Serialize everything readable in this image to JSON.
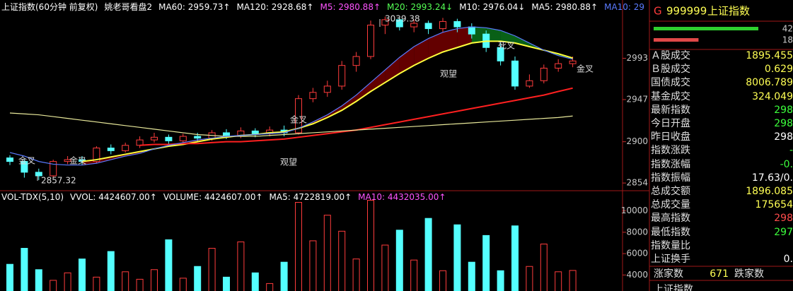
{
  "chart_data": [
    {
      "type": "candlestick",
      "title": "上证指数(60分钟 前复权)",
      "indicators": [
        {
          "text": "姚老哥看盘2",
          "color": "#ffffff"
        },
        {
          "text": "MA60: 2959.73↑",
          "color": "#ffffff"
        },
        {
          "text": "MA120: 2928.68↑",
          "color": "#ffffff"
        },
        {
          "text": "M5: 2980.88↑",
          "color": "#ff54ff"
        },
        {
          "text": "M20: 2993.24↓",
          "color": "#54ff54"
        },
        {
          "text": "M10: 2976.04↓",
          "color": "#ffffff"
        },
        {
          "text": "MA5: 2980.88↑",
          "color": "#ffffff"
        },
        {
          "text": "MA10: 29",
          "color": "#5a7bff"
        }
      ],
      "open": [
        2882,
        2878,
        2866,
        2862,
        2878,
        2880,
        2878,
        2893,
        2890,
        2896,
        2902,
        2905,
        2901,
        2906,
        2904,
        2910,
        2907,
        2912,
        2909,
        2913,
        2910,
        2948,
        2955,
        2962,
        2985,
        2995,
        3030,
        3036,
        3028,
        3032,
        3026,
        3034,
        3028,
        3020,
        3005,
        2990,
        2962,
        2968,
        2982,
        2987
      ],
      "high": [
        2885,
        2880,
        2870,
        2880,
        2884,
        2884,
        2895,
        2897,
        2899,
        2906,
        2910,
        2908,
        2909,
        2910,
        2913,
        2914,
        2916,
        2915,
        2917,
        2918,
        2952,
        2960,
        2968,
        2990,
        3000,
        3035,
        3039.38,
        3038,
        3036,
        3035,
        3038,
        3037,
        3032,
        3024,
        3010,
        2995,
        2975,
        2986,
        2992,
        2995
      ],
      "low": [
        2874,
        2860,
        2857.32,
        2860,
        2875,
        2874,
        2876,
        2886,
        2888,
        2893,
        2899,
        2897,
        2898,
        2900,
        2901,
        2903,
        2904,
        2905,
        2906,
        2906,
        2908,
        2944,
        2950,
        2958,
        2978,
        2992,
        3020,
        3024,
        3022,
        3020,
        3022,
        3022,
        3015,
        3000,
        2985,
        2958,
        2960,
        2965,
        2978,
        2983
      ],
      "close": [
        2878,
        2866,
        2862,
        2878,
        2880,
        2878,
        2893,
        2890,
        2896,
        2902,
        2905,
        2901,
        2906,
        2904,
        2910,
        2907,
        2912,
        2909,
        2913,
        2910,
        2948,
        2955,
        2962,
        2985,
        2995,
        3030,
        3036,
        3028,
        3032,
        3026,
        3034,
        3028,
        3020,
        3005,
        2990,
        2962,
        2968,
        2982,
        2987,
        2990
      ],
      "up_color": "#ff3c3c",
      "down_color": "#54ffff",
      "series": [
        {
          "color": "#ffff3c",
          "values": [
            null,
            null,
            null,
            null,
            null,
            2878,
            2880,
            2883,
            2886,
            2889,
            2892,
            2895,
            2897,
            2900,
            2903,
            2905,
            2907,
            2908,
            2910,
            2911,
            2915,
            2920,
            2927,
            2935,
            2945,
            2956,
            2966,
            2976,
            2985,
            2993,
            3000,
            3005,
            3010,
            3012,
            3012,
            3010,
            3006,
            3002,
            2998,
            2993.24
          ]
        },
        {
          "color": "#ff2020",
          "values": [
            null,
            null,
            null,
            null,
            null,
            null,
            null,
            null,
            null,
            2896,
            2897,
            2897,
            2898,
            2898,
            2899,
            2900,
            2900,
            2901,
            2902,
            2903,
            2905,
            2907,
            2909,
            2911,
            2913,
            2916,
            2919,
            2922,
            2925,
            2928,
            2931,
            2934,
            2937,
            2940,
            2943,
            2946,
            2949,
            2952,
            2956,
            2959.73
          ]
        },
        {
          "color": "#e8e89a",
          "values": [
            2932,
            2931,
            2930,
            2928,
            2926,
            2924,
            2922,
            2920,
            2918,
            2916,
            2914,
            2912,
            2910,
            2908,
            2907,
            2906,
            2906,
            2906,
            2907,
            2908,
            2909,
            2910,
            2911,
            2912,
            2913,
            2914,
            2915,
            2916,
            2917,
            2918,
            2919,
            2920,
            2921,
            2922,
            2923,
            2924,
            2925,
            2926,
            2927,
            2928.68
          ]
        },
        {
          "color": "#5a7bff",
          "values": [
            2888,
            2884,
            2878,
            2875,
            2874,
            2874,
            2876,
            2880,
            2884,
            2887,
            2892,
            2896,
            2899,
            2902,
            2904,
            2906,
            2907,
            2908,
            2909,
            2910,
            2915,
            2922,
            2930,
            2940,
            2952,
            2966,
            2980,
            2994,
            3006,
            3015,
            3022,
            3026,
            3028,
            3027,
            3024,
            3018,
            3010,
            3002,
            2996,
            2992
          ]
        }
      ],
      "band_rise_color": "#6e0000",
      "band_fall_color": "#0a6a1a",
      "ylim": [
        2847,
        3054
      ],
      "yticks": [
        2854,
        2900,
        2947,
        2993
      ],
      "annotations": [
        "3039.38",
        "2857.32",
        "金叉",
        "金叉",
        "金叉",
        "金叉",
        "观望",
        "观望",
        "死叉"
      ]
    },
    {
      "type": "bar",
      "title": "VOL-TDX(5,10)",
      "indicators": [
        {
          "text": "VVOL: 4424607.00↑",
          "color": "#ffffff"
        },
        {
          "text": "VOLUME: 4424607.00↑",
          "color": "#ffffff"
        },
        {
          "text": "MA5: 4722819.00↑",
          "color": "#ffffff"
        },
        {
          "text": "MA10: 4432035.00↑",
          "color": "#ff54ff"
        }
      ],
      "values": [
        5000,
        6500,
        4500,
        3500,
        4200,
        5500,
        3800,
        6200,
        4300,
        3600,
        4500,
        7300,
        3700,
        4800,
        6500,
        3800,
        7100,
        4200,
        3200,
        5200,
        10800,
        7200,
        9600,
        8100,
        5500,
        11000,
        6800,
        8200,
        5400,
        9300,
        4400,
        8700,
        5200,
        7700,
        4400,
        8600,
        4800,
        6900,
        4300,
        4424.607
      ],
      "ylim": [
        2500,
        10900
      ],
      "yticks": [
        4000,
        6000,
        8000,
        10000
      ]
    }
  ],
  "quote_panel": {
    "code_prefix": "G",
    "code": "999999",
    "name": "上证指数",
    "breadth": [
      {
        "value": 42,
        "color": "#2fd02f"
      },
      {
        "value": 18,
        "color": "#e04848"
      }
    ],
    "rows": [
      {
        "label": "Ａ股成交",
        "value": "1895.455",
        "color": "#ffff54"
      },
      {
        "label": "Ｂ股成交",
        "value": "0.629",
        "color": "#ffff54"
      },
      {
        "label": "国债成交",
        "value": "8006.789",
        "color": "#ffff54"
      },
      {
        "label": "基金成交",
        "value": "324.049",
        "color": "#ffff54"
      },
      {
        "label": "最新指数",
        "value": "298",
        "color": "#3cff3c"
      },
      {
        "label": "今日开盘",
        "value": "298",
        "color": "#3cff3c"
      },
      {
        "label": "昨日收盘",
        "value": "298",
        "color": "#ffffff"
      },
      {
        "label": "指数涨跌",
        "value": "-",
        "color": "#3cff3c"
      },
      {
        "label": "指数涨幅",
        "value": "-0.",
        "color": "#3cff3c"
      },
      {
        "label": "指数振幅",
        "value": "17.63/0.",
        "color": "#ffffff"
      },
      {
        "label": "总成交额",
        "value": "1896.085",
        "color": "#ffff54"
      },
      {
        "label": "总成交量",
        "value": "175654",
        "color": "#ffff54"
      },
      {
        "label": "最高指数",
        "value": "298",
        "color": "#ff4c4c"
      },
      {
        "label": "最低指数",
        "value": "297",
        "color": "#3cff3c"
      },
      {
        "label": "指数量比"
      },
      {
        "label": "上证换手",
        "value": "0.",
        "color": "#ffffff"
      }
    ],
    "footer": {
      "up_label": "涨家数",
      "up_count": "671",
      "down_label": "跌家数",
      "next_title": "上证指数"
    }
  }
}
